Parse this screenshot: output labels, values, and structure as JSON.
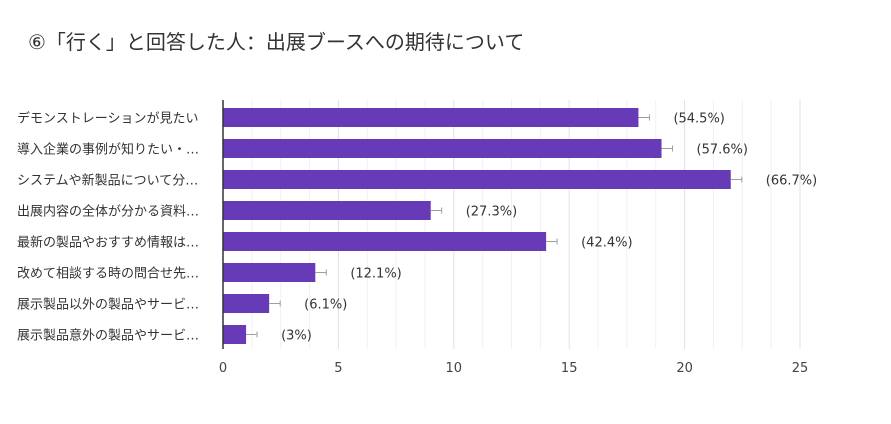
{
  "chart_data": {
    "type": "bar",
    "orientation": "horizontal",
    "title": "⑥「行く」と回答した人：出展ブースへの期待について",
    "categories": [
      "デモンストレーションが見たい",
      "導入企業の事例が知りたい・…",
      "システムや新製品について分…",
      "出展内容の全体が分かる資料…",
      "最新の製品やおすすめ情報は…",
      "改めて相談する時の問合せ先…",
      "展示製品以外の製品やサービ…",
      "展示製品意外の製品やサービ…"
    ],
    "values": [
      18,
      19,
      22,
      9,
      14,
      4,
      2,
      1
    ],
    "data_labels": [
      "(54.5%)",
      "(57.6%)",
      "(66.7%)",
      "(27.3%)",
      "(42.4%)",
      "(12.1%)",
      "(6.1%)",
      "(3%)"
    ],
    "xlim": [
      0,
      25
    ],
    "x_ticks": [
      "0",
      "5",
      "10",
      "15",
      "20",
      "25"
    ],
    "grid": true,
    "bar_color": "#673ab7"
  }
}
